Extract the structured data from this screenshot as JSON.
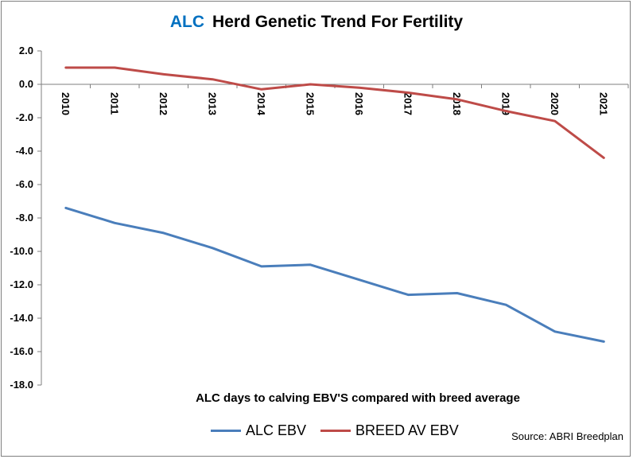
{
  "title_brand": "ALC",
  "title_rest": "Herd Genetic Trend For Fertility",
  "source": "Source: ABRI Breedplan",
  "chart_data": {
    "type": "line",
    "title": "ALC  Herd Genetic Trend For Fertility",
    "xlabel": "ALC days to calving EBV'S compared with breed average",
    "ylabel": "",
    "x": [
      "2010",
      "2011",
      "2012",
      "2013",
      "2014",
      "2015",
      "2016",
      "2017",
      "2018",
      "2019",
      "2020",
      "2021"
    ],
    "ylim": [
      -18,
      2
    ],
    "ytick_step": 2,
    "ytick_labels": [
      "2.0",
      "0.0",
      "-2.0",
      "-4.0",
      "-6.0",
      "-8.0",
      "-10.0",
      "-12.0",
      "-14.0",
      "-16.0",
      "-18.0"
    ],
    "grid": false,
    "legend_position": "bottom",
    "series": [
      {
        "name": "ALC EBV",
        "color": "#4a7ebb",
        "values": [
          -7.4,
          -8.3,
          -8.9,
          -9.8,
          -10.9,
          -10.8,
          -11.7,
          -12.6,
          -12.5,
          -13.2,
          -14.8,
          -15.4
        ]
      },
      {
        "name": "BREED AV EBV",
        "color": "#be4b48",
        "values": [
          1.0,
          1.0,
          0.6,
          0.3,
          -0.3,
          0.0,
          -0.2,
          -0.5,
          -0.9,
          -1.6,
          -2.2,
          -4.4
        ]
      }
    ]
  }
}
